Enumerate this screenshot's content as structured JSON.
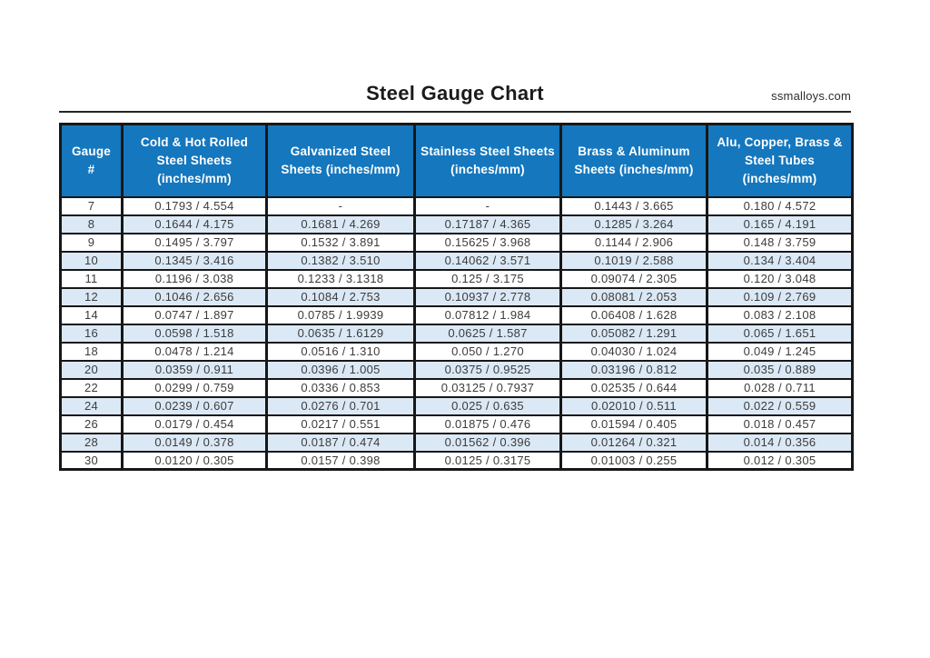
{
  "page": {
    "title": "Steel Gauge Chart",
    "website": "ssmalloys.com"
  },
  "colors": {
    "header_bg": "#1577be",
    "stripe_bg": "#dbe8f5",
    "border_color": "#171717",
    "header_text": "#ffffff",
    "cell_text": "#3c3c3c",
    "title_text": "#1b1b1b"
  },
  "table": {
    "columns": [
      {
        "key": "gauge",
        "label": "Gauge\n#"
      },
      {
        "key": "cold-hot-rolled",
        "label": "Cold & Hot Rolled\nSteel Sheets\n(inches/mm)"
      },
      {
        "key": "galvanized",
        "label": "Galvanized Steel\nSheets (inches/mm)"
      },
      {
        "key": "stainless",
        "label": "Stainless Steel Sheets\n(inches/mm)"
      },
      {
        "key": "brass-aluminum",
        "label": "Brass & Aluminum\nSheets (inches/mm)"
      },
      {
        "key": "tubes",
        "label": "Alu, Copper, Brass &\nSteel Tubes\n(inches/mm)"
      }
    ],
    "rows": [
      [
        "7",
        "0.1793 / 4.554",
        "-",
        "-",
        "0.1443 / 3.665",
        "0.180 / 4.572"
      ],
      [
        "8",
        "0.1644 / 4.175",
        "0.1681 / 4.269",
        "0.17187 / 4.365",
        "0.1285 / 3.264",
        "0.165 / 4.191"
      ],
      [
        "9",
        "0.1495 / 3.797",
        "0.1532 / 3.891",
        "0.15625 / 3.968",
        "0.1144 / 2.906",
        "0.148 / 3.759"
      ],
      [
        "10",
        "0.1345 / 3.416",
        "0.1382 / 3.510",
        "0.14062 / 3.571",
        "0.1019 / 2.588",
        "0.134 / 3.404"
      ],
      [
        "11",
        "0.1196 / 3.038",
        "0.1233 / 3.1318",
        "0.125 / 3.175",
        "0.09074 / 2.305",
        "0.120 / 3.048"
      ],
      [
        "12",
        "0.1046 / 2.656",
        "0.1084 / 2.753",
        "0.10937 / 2.778",
        "0.08081 / 2.053",
        "0.109 / 2.769"
      ],
      [
        "14",
        "0.0747 / 1.897",
        "0.0785 / 1.9939",
        "0.07812 / 1.984",
        "0.06408 / 1.628",
        "0.083 / 2.108"
      ],
      [
        "16",
        "0.0598 / 1.518",
        "0.0635 / 1.6129",
        "0.0625 / 1.587",
        "0.05082 / 1.291",
        "0.065 / 1.651"
      ],
      [
        "18",
        "0.0478 / 1.214",
        "0.0516 / 1.310",
        "0.050 / 1.270",
        "0.04030 / 1.024",
        "0.049 / 1.245"
      ],
      [
        "20",
        "0.0359 / 0.911",
        "0.0396 / 1.005",
        "0.0375 / 0.9525",
        "0.03196 / 0.812",
        "0.035 / 0.889"
      ],
      [
        "22",
        "0.0299 / 0.759",
        "0.0336 / 0.853",
        "0.03125 / 0.7937",
        "0.02535 / 0.644",
        "0.028 / 0.711"
      ],
      [
        "24",
        "0.0239 / 0.607",
        "0.0276 / 0.701",
        "0.025 / 0.635",
        "0.02010 / 0.511",
        "0.022 / 0.559"
      ],
      [
        "26",
        "0.0179 / 0.454",
        "0.0217 / 0.551",
        "0.01875 / 0.476",
        "0.01594 / 0.405",
        "0.018 / 0.457"
      ],
      [
        "28",
        "0.0149 / 0.378",
        "0.0187 / 0.474",
        "0.01562 / 0.396",
        "0.01264 / 0.321",
        "0.014 / 0.356"
      ],
      [
        "30",
        "0.0120 / 0.305",
        "0.0157 / 0.398",
        "0.0125 / 0.3175",
        "0.01003 / 0.255",
        "0.012 / 0.305"
      ]
    ]
  }
}
